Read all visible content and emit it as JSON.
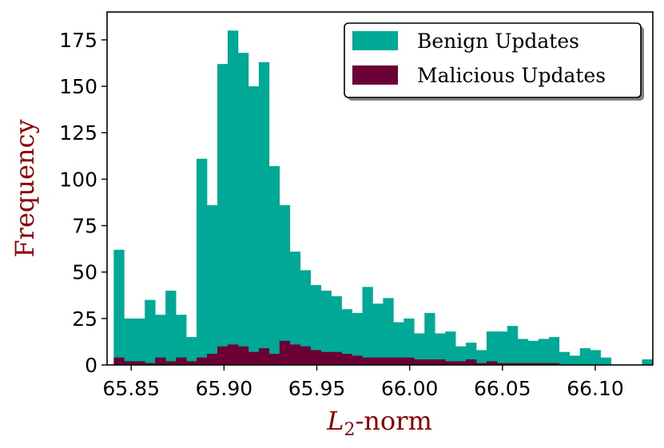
{
  "chart_data": {
    "type": "bar",
    "xlabel": {
      "main": "L",
      "sub": "2",
      "suffix": "-norm"
    },
    "ylabel": "Frequency",
    "xlim": [
      65.837,
      66.131
    ],
    "ylim": [
      0,
      190
    ],
    "bin_start": 65.8406,
    "bin_width": 0.00558,
    "x_ticks": [
      "65.85",
      "65.90",
      "65.95",
      "66.00",
      "66.05",
      "66.10"
    ],
    "x_tick_values": [
      65.85,
      65.9,
      65.95,
      66.0,
      66.05,
      66.1
    ],
    "y_ticks": [
      "0",
      "25",
      "50",
      "75",
      "100",
      "125",
      "150",
      "175"
    ],
    "y_tick_values": [
      0,
      25,
      50,
      75,
      100,
      125,
      150,
      175
    ],
    "legend_position": "top-right",
    "grid": false,
    "series": [
      {
        "name": "Benign Updates",
        "color": "#00a896",
        "values": [
          62,
          25,
          25,
          35,
          27,
          40,
          27,
          15,
          111,
          86,
          162,
          180,
          168,
          150,
          163,
          107,
          86,
          61,
          51,
          43,
          40,
          37,
          30,
          28,
          42,
          33,
          36,
          23,
          25,
          17,
          28,
          17,
          18,
          10,
          12,
          8,
          18,
          18,
          21,
          14,
          13,
          14,
          15,
          7,
          5,
          9,
          8,
          4,
          0,
          0,
          0,
          3
        ]
      },
      {
        "name": "Malicious Updates",
        "color": "#6b0035",
        "values": [
          4,
          2,
          2,
          1,
          4,
          2,
          4,
          2,
          4,
          6,
          10,
          11,
          10,
          7,
          9,
          6,
          13,
          11,
          10,
          8,
          7,
          7,
          6,
          5,
          4,
          4,
          4,
          4,
          4,
          3,
          3,
          3,
          2,
          2,
          3,
          1,
          2,
          1,
          1,
          1,
          1,
          1,
          1,
          0,
          0,
          0,
          0,
          0,
          0,
          0,
          0,
          0
        ]
      }
    ]
  }
}
